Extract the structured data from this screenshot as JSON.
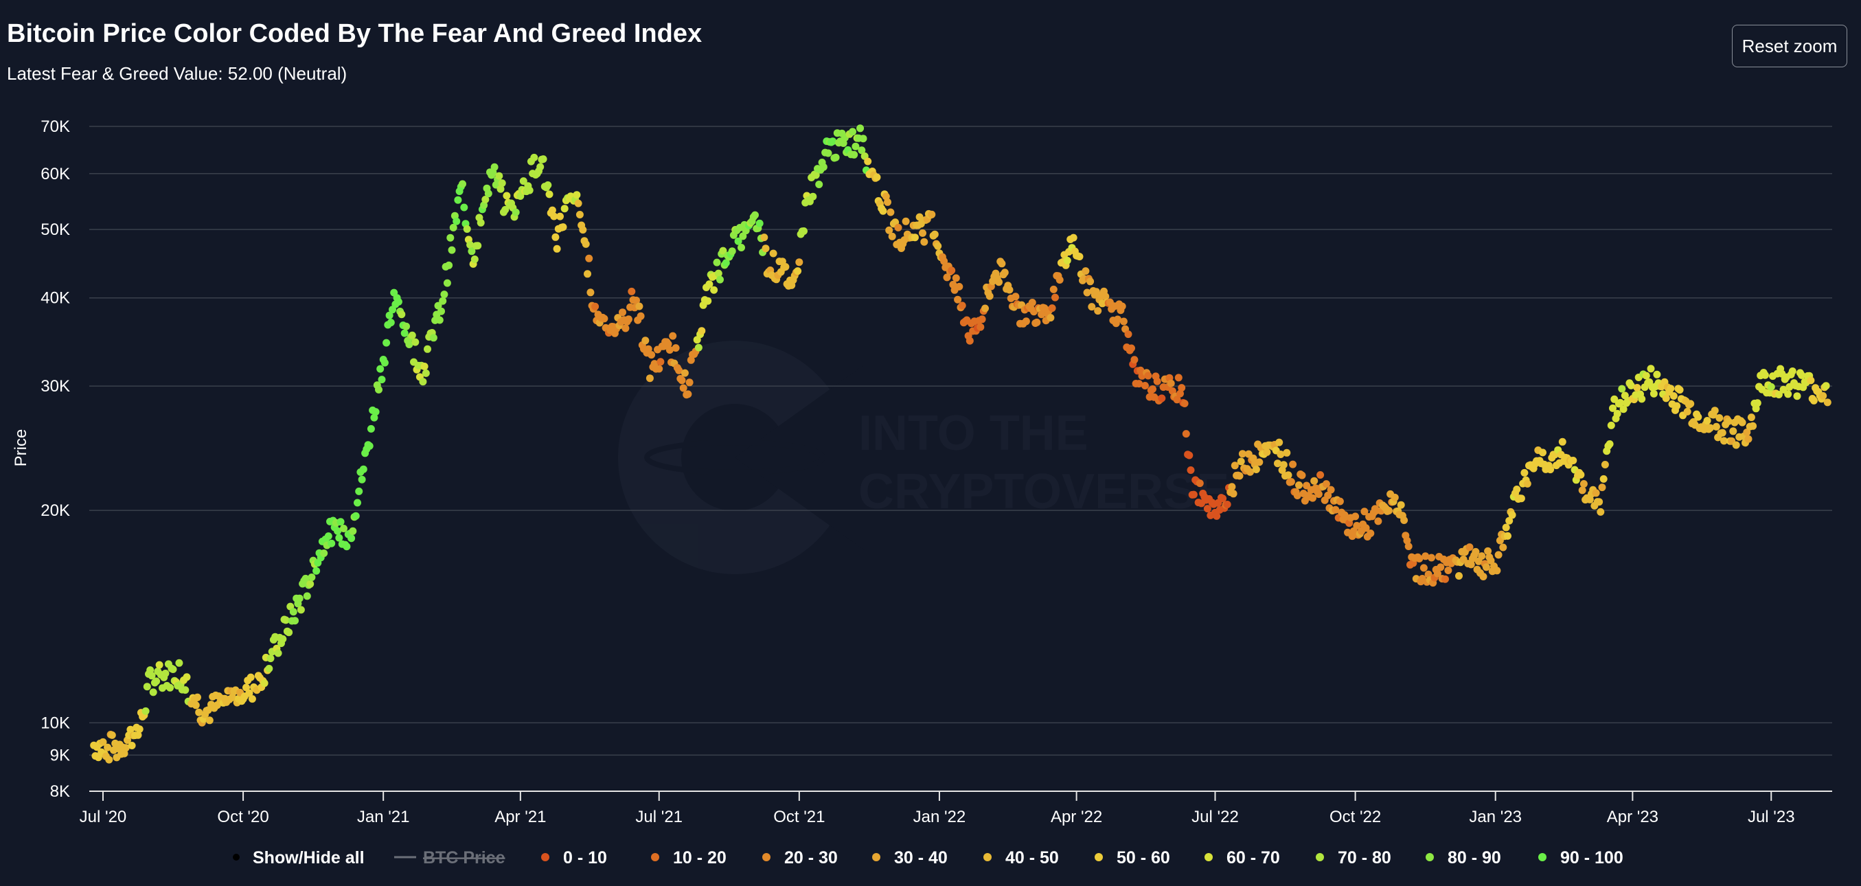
{
  "header": {
    "title": "Bitcoin Price Color Coded By The Fear And Greed Index",
    "subtitle": "Latest Fear & Greed Value: 52.00 (Neutral)",
    "reset_zoom_label": "Reset zoom"
  },
  "watermark": {
    "line1": "INTO THE",
    "line2": "CRYPTOVERSE"
  },
  "chart_data": {
    "type": "scatter",
    "title": "Bitcoin Price Color Coded By The Fear And Greed Index",
    "ylabel": "Price",
    "yscale": "log",
    "ylim": [
      8000,
      70000
    ],
    "ytick_values": [
      8000,
      9000,
      10000,
      20000,
      30000,
      40000,
      50000,
      60000,
      70000
    ],
    "ytick_labels": [
      "8K",
      "9K",
      "10K",
      "20K",
      "30K",
      "40K",
      "50K",
      "60K",
      "70K"
    ],
    "x_start": "2020-06-22",
    "x_end": "2023-08-10",
    "xtick_dates": [
      "2020-07-01",
      "2020-10-01",
      "2021-01-01",
      "2021-04-01",
      "2021-07-01",
      "2021-10-01",
      "2022-01-01",
      "2022-04-01",
      "2022-07-01",
      "2022-10-01",
      "2023-01-01",
      "2023-04-01",
      "2023-07-01"
    ],
    "xtick_labels": [
      "Jul '20",
      "Oct '20",
      "Jan '21",
      "Apr '21",
      "Jul '21",
      "Oct '21",
      "Jan '22",
      "Apr '22",
      "Jul '22",
      "Oct '22",
      "Jan '23",
      "Apr '23",
      "Jul '23"
    ],
    "grid": true,
    "legend_position": "bottom",
    "legend": {
      "show_hide_label": "Show/Hide all",
      "btc_label": "BTC Price",
      "buckets": [
        {
          "label": "0 - 10",
          "color": "#d9531e"
        },
        {
          "label": "10 - 20",
          "color": "#de6f23"
        },
        {
          "label": "20 - 30",
          "color": "#e28a2a"
        },
        {
          "label": "30 - 40",
          "color": "#e6a632"
        },
        {
          "label": "40 - 50",
          "color": "#e8ba36"
        },
        {
          "label": "50 - 60",
          "color": "#eccc3a"
        },
        {
          "label": "60 - 70",
          "color": "#d8e23a"
        },
        {
          "label": "70 - 80",
          "color": "#b2e63e"
        },
        {
          "label": "80 - 90",
          "color": "#8ee843"
        },
        {
          "label": "90 - 100",
          "color": "#6aee48"
        }
      ]
    },
    "series_knots": [
      [
        "2020-06-25",
        9300,
        5
      ],
      [
        "2020-07-10",
        9200,
        4
      ],
      [
        "2020-07-25",
        9800,
        5
      ],
      [
        "2020-08-01",
        11500,
        7
      ],
      [
        "2020-08-20",
        11800,
        7
      ],
      [
        "2020-09-05",
        10300,
        4
      ],
      [
        "2020-09-20",
        10800,
        4
      ],
      [
        "2020-10-10",
        11300,
        5
      ],
      [
        "2020-10-25",
        13100,
        7
      ],
      [
        "2020-11-10",
        15300,
        8
      ],
      [
        "2020-11-25",
        18500,
        9
      ],
      [
        "2020-12-10",
        18500,
        9
      ],
      [
        "2020-12-20",
        23500,
        9
      ],
      [
        "2021-01-08",
        40000,
        9
      ],
      [
        "2021-01-15",
        36500,
        8
      ],
      [
        "2021-01-27",
        31500,
        7
      ],
      [
        "2021-02-08",
        39000,
        8
      ],
      [
        "2021-02-15",
        48000,
        8
      ],
      [
        "2021-02-21",
        57000,
        9
      ],
      [
        "2021-03-01",
        46000,
        7
      ],
      [
        "2021-03-13",
        60500,
        8
      ],
      [
        "2021-03-25",
        52500,
        7
      ],
      [
        "2021-04-14",
        63500,
        7
      ],
      [
        "2021-04-25",
        49000,
        5
      ],
      [
        "2021-05-05",
        57000,
        6
      ],
      [
        "2021-05-12",
        50000,
        4
      ],
      [
        "2021-05-20",
        38000,
        2
      ],
      [
        "2021-06-05",
        36000,
        2
      ],
      [
        "2021-06-15",
        40000,
        2
      ],
      [
        "2021-06-25",
        32000,
        2
      ],
      [
        "2021-07-10",
        34000,
        2
      ],
      [
        "2021-07-20",
        30000,
        2
      ],
      [
        "2021-08-01",
        40000,
        6
      ],
      [
        "2021-08-15",
        47000,
        8
      ],
      [
        "2021-09-05",
        51000,
        8
      ],
      [
        "2021-09-10",
        45000,
        4
      ],
      [
        "2021-09-28",
        42000,
        4
      ],
      [
        "2021-10-06",
        55000,
        7
      ],
      [
        "2021-10-20",
        65000,
        8
      ],
      [
        "2021-11-10",
        67000,
        8
      ],
      [
        "2021-11-20",
        58000,
        5
      ],
      [
        "2021-12-04",
        49000,
        3
      ],
      [
        "2021-12-27",
        50500,
        4
      ],
      [
        "2022-01-10",
        42000,
        2
      ],
      [
        "2022-01-23",
        35000,
        1
      ],
      [
        "2022-02-08",
        44000,
        3
      ],
      [
        "2022-02-24",
        38000,
        2
      ],
      [
        "2022-03-15",
        39000,
        2
      ],
      [
        "2022-03-29",
        47500,
        5
      ],
      [
        "2022-04-12",
        40000,
        3
      ],
      [
        "2022-05-01",
        38000,
        2
      ],
      [
        "2022-05-10",
        30500,
        1
      ],
      [
        "2022-05-28",
        29500,
        1
      ],
      [
        "2022-06-10",
        29500,
        1
      ],
      [
        "2022-06-15",
        22000,
        0
      ],
      [
        "2022-07-01",
        19500,
        0
      ],
      [
        "2022-07-20",
        23500,
        3
      ],
      [
        "2022-08-12",
        24300,
        4
      ],
      [
        "2022-08-25",
        21500,
        2
      ],
      [
        "2022-09-10",
        21800,
        2
      ],
      [
        "2022-09-25",
        19000,
        2
      ],
      [
        "2022-10-10",
        19100,
        2
      ],
      [
        "2022-10-28",
        20600,
        3
      ],
      [
        "2022-11-09",
        16500,
        2
      ],
      [
        "2022-11-25",
        16500,
        2
      ],
      [
        "2022-12-15",
        17100,
        3
      ],
      [
        "2023-01-01",
        16600,
        3
      ],
      [
        "2023-01-15",
        21000,
        5
      ],
      [
        "2023-01-30",
        23500,
        5
      ],
      [
        "2023-02-15",
        24000,
        5
      ],
      [
        "2023-03-10",
        20000,
        4
      ],
      [
        "2023-03-20",
        28000,
        6
      ],
      [
        "2023-04-13",
        30500,
        6
      ],
      [
        "2023-04-27",
        29200,
        5
      ],
      [
        "2023-05-15",
        27000,
        4
      ],
      [
        "2023-06-15",
        25500,
        4
      ],
      [
        "2023-06-25",
        30500,
        6
      ],
      [
        "2023-07-15",
        30500,
        6
      ],
      [
        "2023-08-08",
        29300,
        5
      ]
    ]
  }
}
